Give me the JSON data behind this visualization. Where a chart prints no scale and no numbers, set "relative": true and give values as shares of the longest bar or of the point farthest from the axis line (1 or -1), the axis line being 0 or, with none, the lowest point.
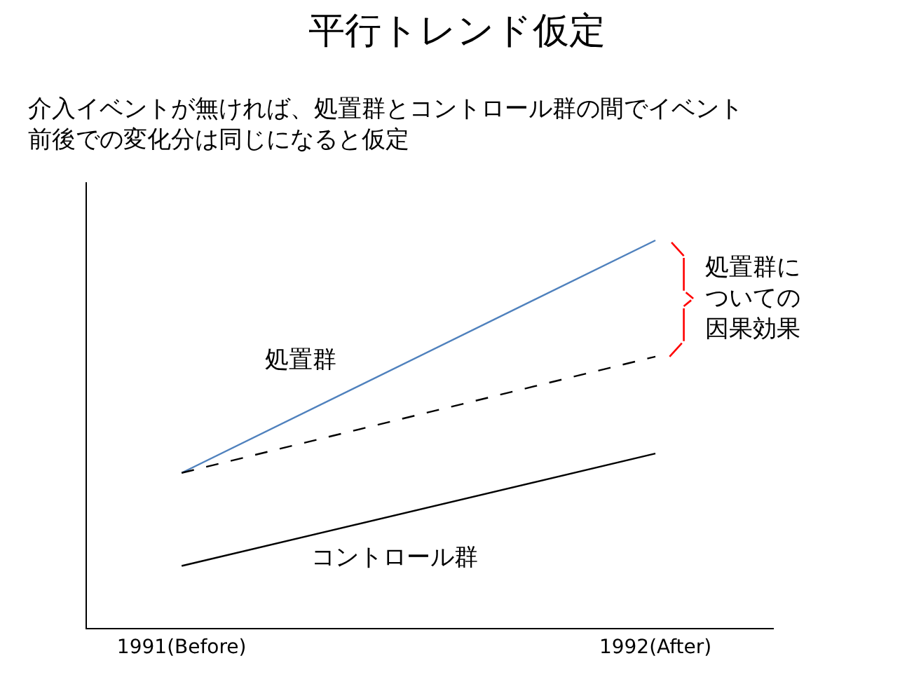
{
  "chart_data": {
    "type": "line",
    "title": "平行トレンド仮定",
    "subtitle": "介入イベントが無ければ、処置群とコントロール群の間でイベント前後での変化分は同じになると仮定",
    "categories": [
      "1991(Before)",
      "1992(After)"
    ],
    "relative": true,
    "legend": false,
    "marker": "none",
    "series": [
      {
        "name": "処置群",
        "color": "#4f81bd",
        "values": [
          0.4,
          1
        ],
        "line_style": "solid"
      },
      {
        "color": "#000000",
        "values": [
          0.4,
          0.7
        ],
        "line_style": "dashed"
      },
      {
        "name": "コントロール群",
        "color": "#000000",
        "values": [
          0.16,
          0.45
        ],
        "line_style": "solid"
      }
    ],
    "annotations": [
      "処置群についての因果効果"
    ]
  }
}
